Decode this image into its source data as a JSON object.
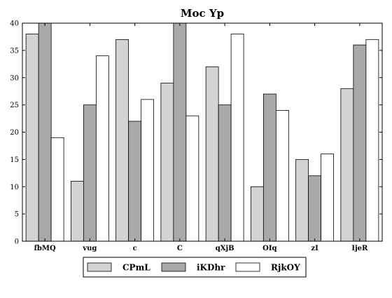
{
  "chart_data": {
    "type": "bar",
    "title": "Moc Yp",
    "xlabel": "",
    "ylabel": "",
    "categories": [
      "fbMQ",
      "vug",
      "c",
      "C",
      "qXjB",
      "OIq",
      "zI",
      "IjeR"
    ],
    "series": [
      {
        "name": "CPmL",
        "color": "#d3d3d3",
        "values": [
          38,
          11,
          37,
          29,
          32,
          10,
          15,
          28
        ]
      },
      {
        "name": "iKDhr",
        "color": "#a9a9a9",
        "values": [
          40,
          25,
          22,
          40,
          25,
          27,
          12,
          36
        ]
      },
      {
        "name": "RjkOY",
        "color": "#ffffff",
        "values": [
          19,
          34,
          26,
          23,
          38,
          24,
          16,
          37
        ]
      }
    ],
    "ylim": [
      0,
      40
    ],
    "yticks": [
      0,
      5,
      10,
      15,
      20,
      25,
      30,
      35,
      40
    ],
    "grid": false,
    "legend_position": "bottom-center"
  }
}
